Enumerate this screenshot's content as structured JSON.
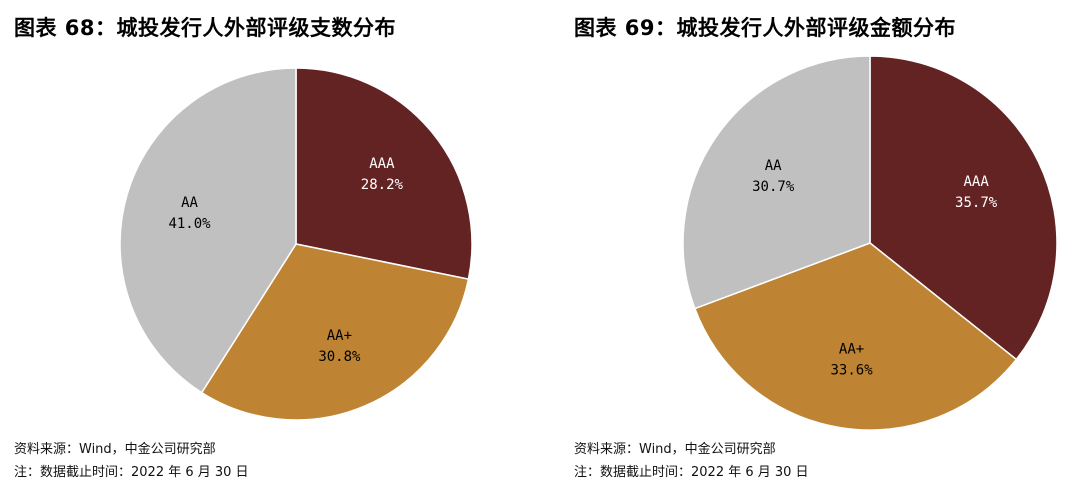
{
  "charts": [
    {
      "title": "图表 68：城投发行人外部评级支数分布",
      "source": "资料来源：Wind，中金公司研究部",
      "note": "注：数据截止时间：2022 年 6 月 30 日"
    },
    {
      "title": "图表 69：城投发行人外部评级金额分布",
      "source": "资料来源：Wind，中金公司研究部",
      "note": "注：数据截止时间：2022 年 6 月 30 日"
    }
  ],
  "chart_data": [
    {
      "type": "pie",
      "title": "图表 68：城投发行人外部评级支数分布",
      "slices": [
        {
          "label": "AAA",
          "value": 28.2,
          "display": "28.2%",
          "color": "#632323"
        },
        {
          "label": "AA+",
          "value": 30.8,
          "display": "30.8%",
          "color": "#BE8433"
        },
        {
          "label": "AA",
          "value": 41.0,
          "display": "41.0%",
          "color": "#C0C0C0"
        }
      ],
      "start_angle": "12 o'clock",
      "direction": "clockwise",
      "legend": "none"
    },
    {
      "type": "pie",
      "title": "图表 69：城投发行人外部评级金额分布",
      "slices": [
        {
          "label": "AAA",
          "value": 35.7,
          "display": "35.7%",
          "color": "#632323"
        },
        {
          "label": "AA+",
          "value": 33.6,
          "display": "33.6%",
          "color": "#BE8433"
        },
        {
          "label": "AA",
          "value": 30.7,
          "display": "30.7%",
          "color": "#C0C0C0"
        }
      ],
      "start_angle": "12 o'clock",
      "direction": "clockwise",
      "legend": "none"
    }
  ]
}
